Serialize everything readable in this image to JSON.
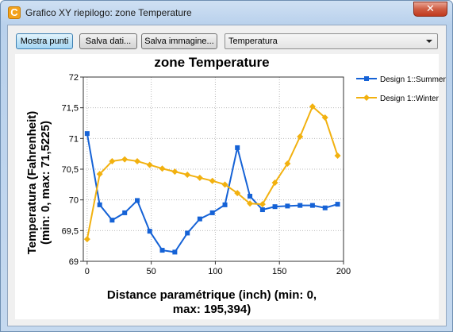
{
  "window": {
    "title": "Grafico XY riepilogo: zone Temperature",
    "icon_letter": "C",
    "close_symbol": "✕"
  },
  "toolbar": {
    "show_points_label": "Mostra punti",
    "save_data_label": "Salva dati...",
    "save_image_label": "Salva immagine...",
    "quantity_select_value": "Temperatura"
  },
  "colors": {
    "summer": "#1562d6",
    "winter": "#f2b10f",
    "grid": "#bbbbbb"
  },
  "chart_data": {
    "type": "line",
    "title": "zone Temperature",
    "xlabel": [
      "Distance paramétrique (inch) (min: 0,",
      "max: 195,394)"
    ],
    "ylabel": [
      "Temperatura (Fahrenheit)",
      "(min: 0, max: 71,5225)"
    ],
    "xlim": [
      -3,
      200
    ],
    "ylim": [
      69,
      72
    ],
    "x_ticks": [
      0,
      50,
      100,
      150,
      200
    ],
    "x_tick_labels": [
      "0",
      "50",
      "100",
      "150",
      "200"
    ],
    "y_ticks": [
      69,
      69.5,
      70,
      70.5,
      71,
      71.5,
      72
    ],
    "y_tick_labels": [
      "69",
      "69,5",
      "70",
      "70,5",
      "71",
      "71,5",
      "72"
    ],
    "grid": true,
    "legend_position": "right",
    "series": [
      {
        "name": "Design 1::Summer",
        "marker": "square",
        "x": [
          0,
          9.8,
          19.5,
          29.3,
          39.1,
          48.8,
          58.6,
          68.4,
          78.2,
          87.9,
          97.7,
          107.5,
          117.2,
          127,
          136.8,
          146.5,
          156.3,
          166.1,
          175.8,
          185.6,
          195.4
        ],
        "y": [
          71.08,
          69.92,
          69.67,
          69.79,
          69.99,
          69.49,
          69.18,
          69.15,
          69.46,
          69.69,
          69.79,
          69.92,
          70.85,
          70.06,
          69.84,
          69.89,
          69.9,
          69.91,
          69.91,
          69.87,
          69.93
        ]
      },
      {
        "name": "Design 1::Winter",
        "marker": "diamond",
        "x": [
          0,
          9.8,
          19.5,
          29.3,
          39.1,
          48.8,
          58.6,
          68.4,
          78.2,
          87.9,
          97.7,
          107.5,
          117.2,
          127,
          136.8,
          146.5,
          156.3,
          166.1,
          175.8,
          185.6,
          195.4
        ],
        "y": [
          69.36,
          70.42,
          70.63,
          70.66,
          70.63,
          70.57,
          70.51,
          70.46,
          70.41,
          70.36,
          70.31,
          70.25,
          70.11,
          69.94,
          69.93,
          70.28,
          70.59,
          71.03,
          71.52,
          71.34,
          70.72
        ]
      }
    ]
  }
}
